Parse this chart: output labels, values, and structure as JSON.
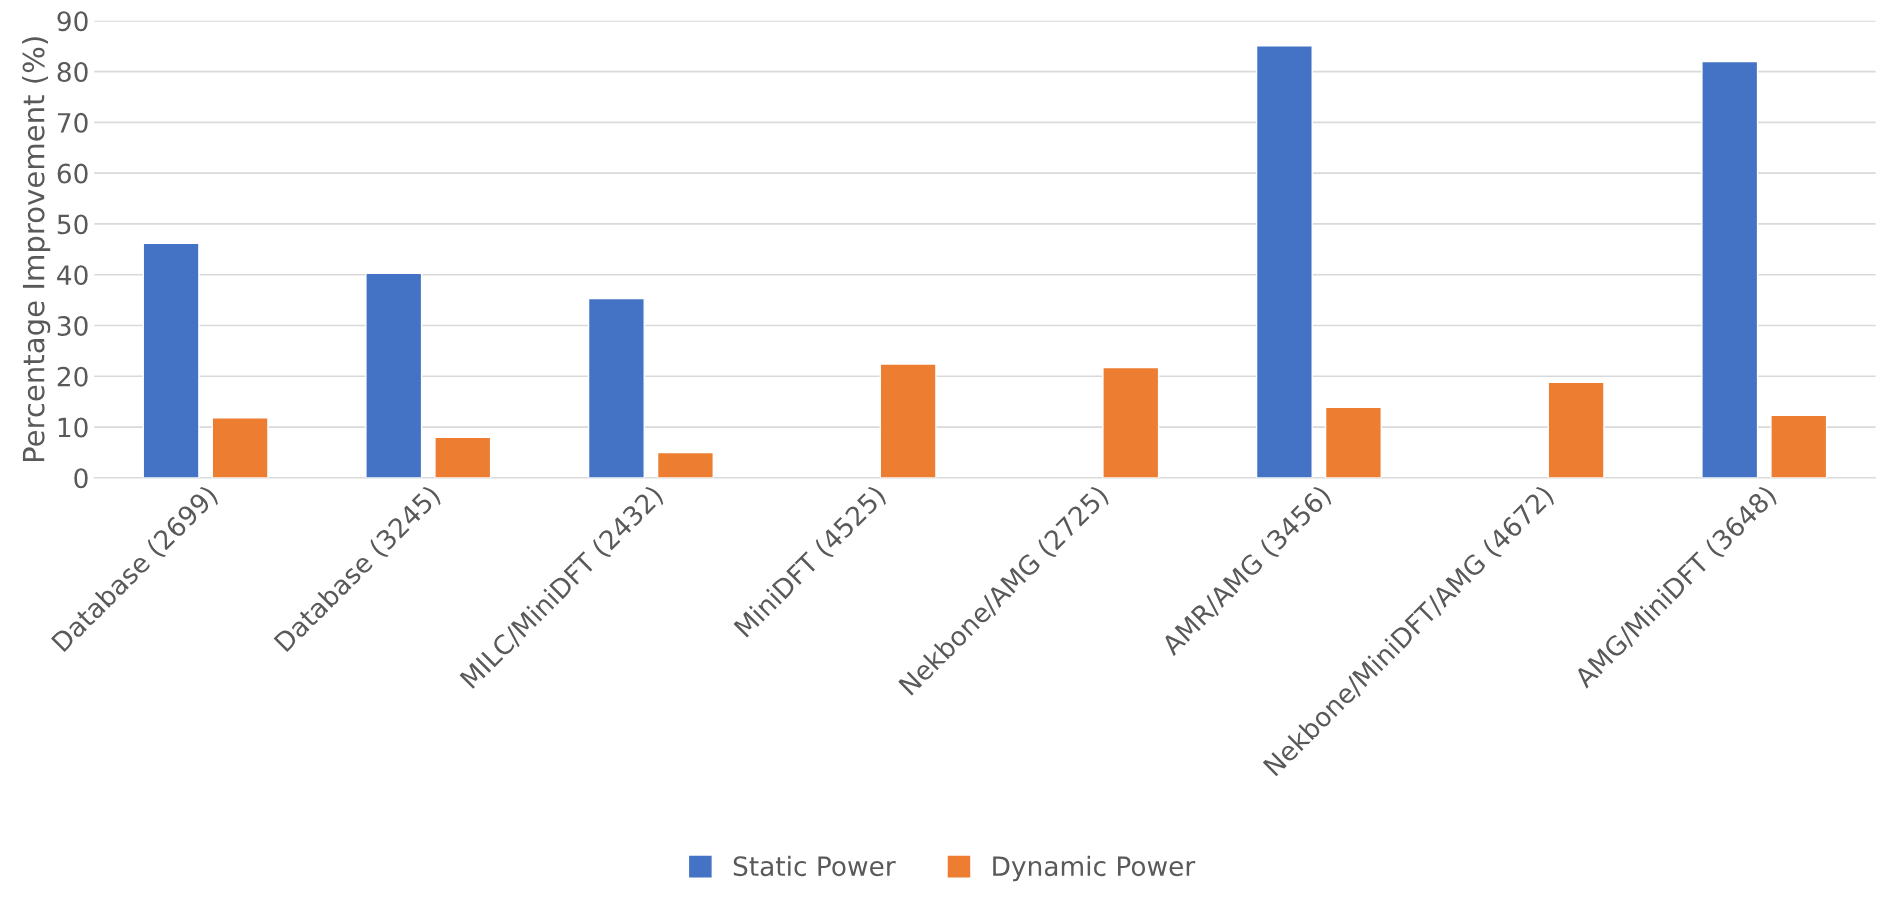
{
  "chart_data": {
    "type": "bar",
    "ylabel": "Percentage Improvement (%)",
    "categories": [
      "Database (2699)",
      "Database (3245)",
      "MILC/MiniDFT (2432)",
      "MiniDFT (4525)",
      "Nekbone/AMG (2725)",
      "AMR/AMG (3456)",
      "Nekbone/MiniDFT/AMG (4672)",
      "AMG/MiniDFT (3648)"
    ],
    "series": [
      {
        "name": "Static Power",
        "color": "#4472c4",
        "values": [
          46.2,
          40.3,
          35.3,
          null,
          null,
          85.1,
          null,
          82.0
        ]
      },
      {
        "name": "Dynamic Power",
        "color": "#ed7d31",
        "values": [
          11.8,
          8.0,
          5.0,
          22.4,
          21.7,
          13.9,
          18.8,
          12.3
        ]
      }
    ],
    "ylim": [
      0,
      90
    ],
    "yticks": [
      0,
      10,
      20,
      30,
      40,
      50,
      60,
      70,
      80,
      90
    ],
    "grid": "y",
    "legend": "bottom"
  }
}
